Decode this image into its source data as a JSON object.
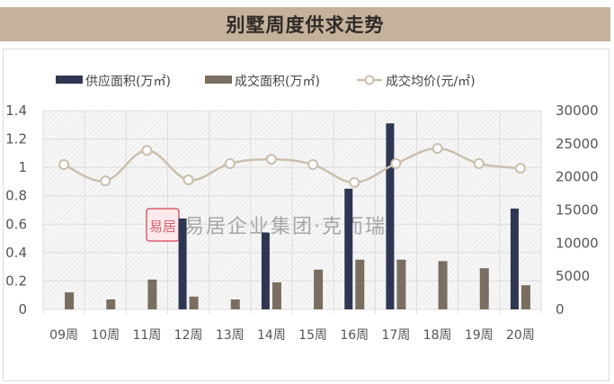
{
  "title": "别墅周度供求走势",
  "watermark": {
    "seal": "易居",
    "text": "易居企业集团·克而瑞"
  },
  "colors": {
    "title_bg": "#c4b29b",
    "supply": "#2f3651",
    "deal": "#7a6e60",
    "price_line": "#cbbfae",
    "grid": "#dddddd"
  },
  "chart_data": {
    "type": "bar",
    "title": "别墅周度供求走势",
    "categories": [
      "09周",
      "10周",
      "11周",
      "12周",
      "13周",
      "14周",
      "15周",
      "16周",
      "17周",
      "18周",
      "19周",
      "20周"
    ],
    "series": [
      {
        "name": "供应面积(万㎡)",
        "type": "bar",
        "axis": "left",
        "values": [
          0,
          0,
          0,
          0.64,
          0,
          0.54,
          0,
          0.85,
          1.31,
          0,
          0,
          0.71
        ]
      },
      {
        "name": "成交面积(万㎡)",
        "type": "bar",
        "axis": "left",
        "values": [
          0.12,
          0.07,
          0.21,
          0.09,
          0.07,
          0.19,
          0.28,
          0.35,
          0.35,
          0.34,
          0.29,
          0.17
        ]
      },
      {
        "name": "成交均价(元/㎡)",
        "type": "line",
        "axis": "right",
        "values": [
          21850,
          19400,
          24000,
          19550,
          22000,
          22650,
          21850,
          19150,
          22000,
          24300,
          22000,
          21300
        ]
      }
    ],
    "y_left": {
      "ylim": [
        0,
        1.4
      ],
      "ticks": [
        "0",
        "0.2",
        "0.4",
        "0.6",
        "0.8",
        "1",
        "1.2",
        "1.4"
      ]
    },
    "y_right": {
      "ylim": [
        0,
        30000
      ],
      "ticks": [
        "0",
        "5000",
        "10000",
        "15000",
        "20000",
        "25000",
        "30000"
      ]
    },
    "xlabel": "",
    "ylabel": "",
    "grid": true,
    "legend_position": "top"
  },
  "legend": [
    {
      "label": "供应面积(万㎡)",
      "kind": "bar"
    },
    {
      "label": "成交面积(万㎡)",
      "kind": "bar"
    },
    {
      "label": "成交均价(元/㎡)",
      "kind": "line-marker"
    }
  ]
}
